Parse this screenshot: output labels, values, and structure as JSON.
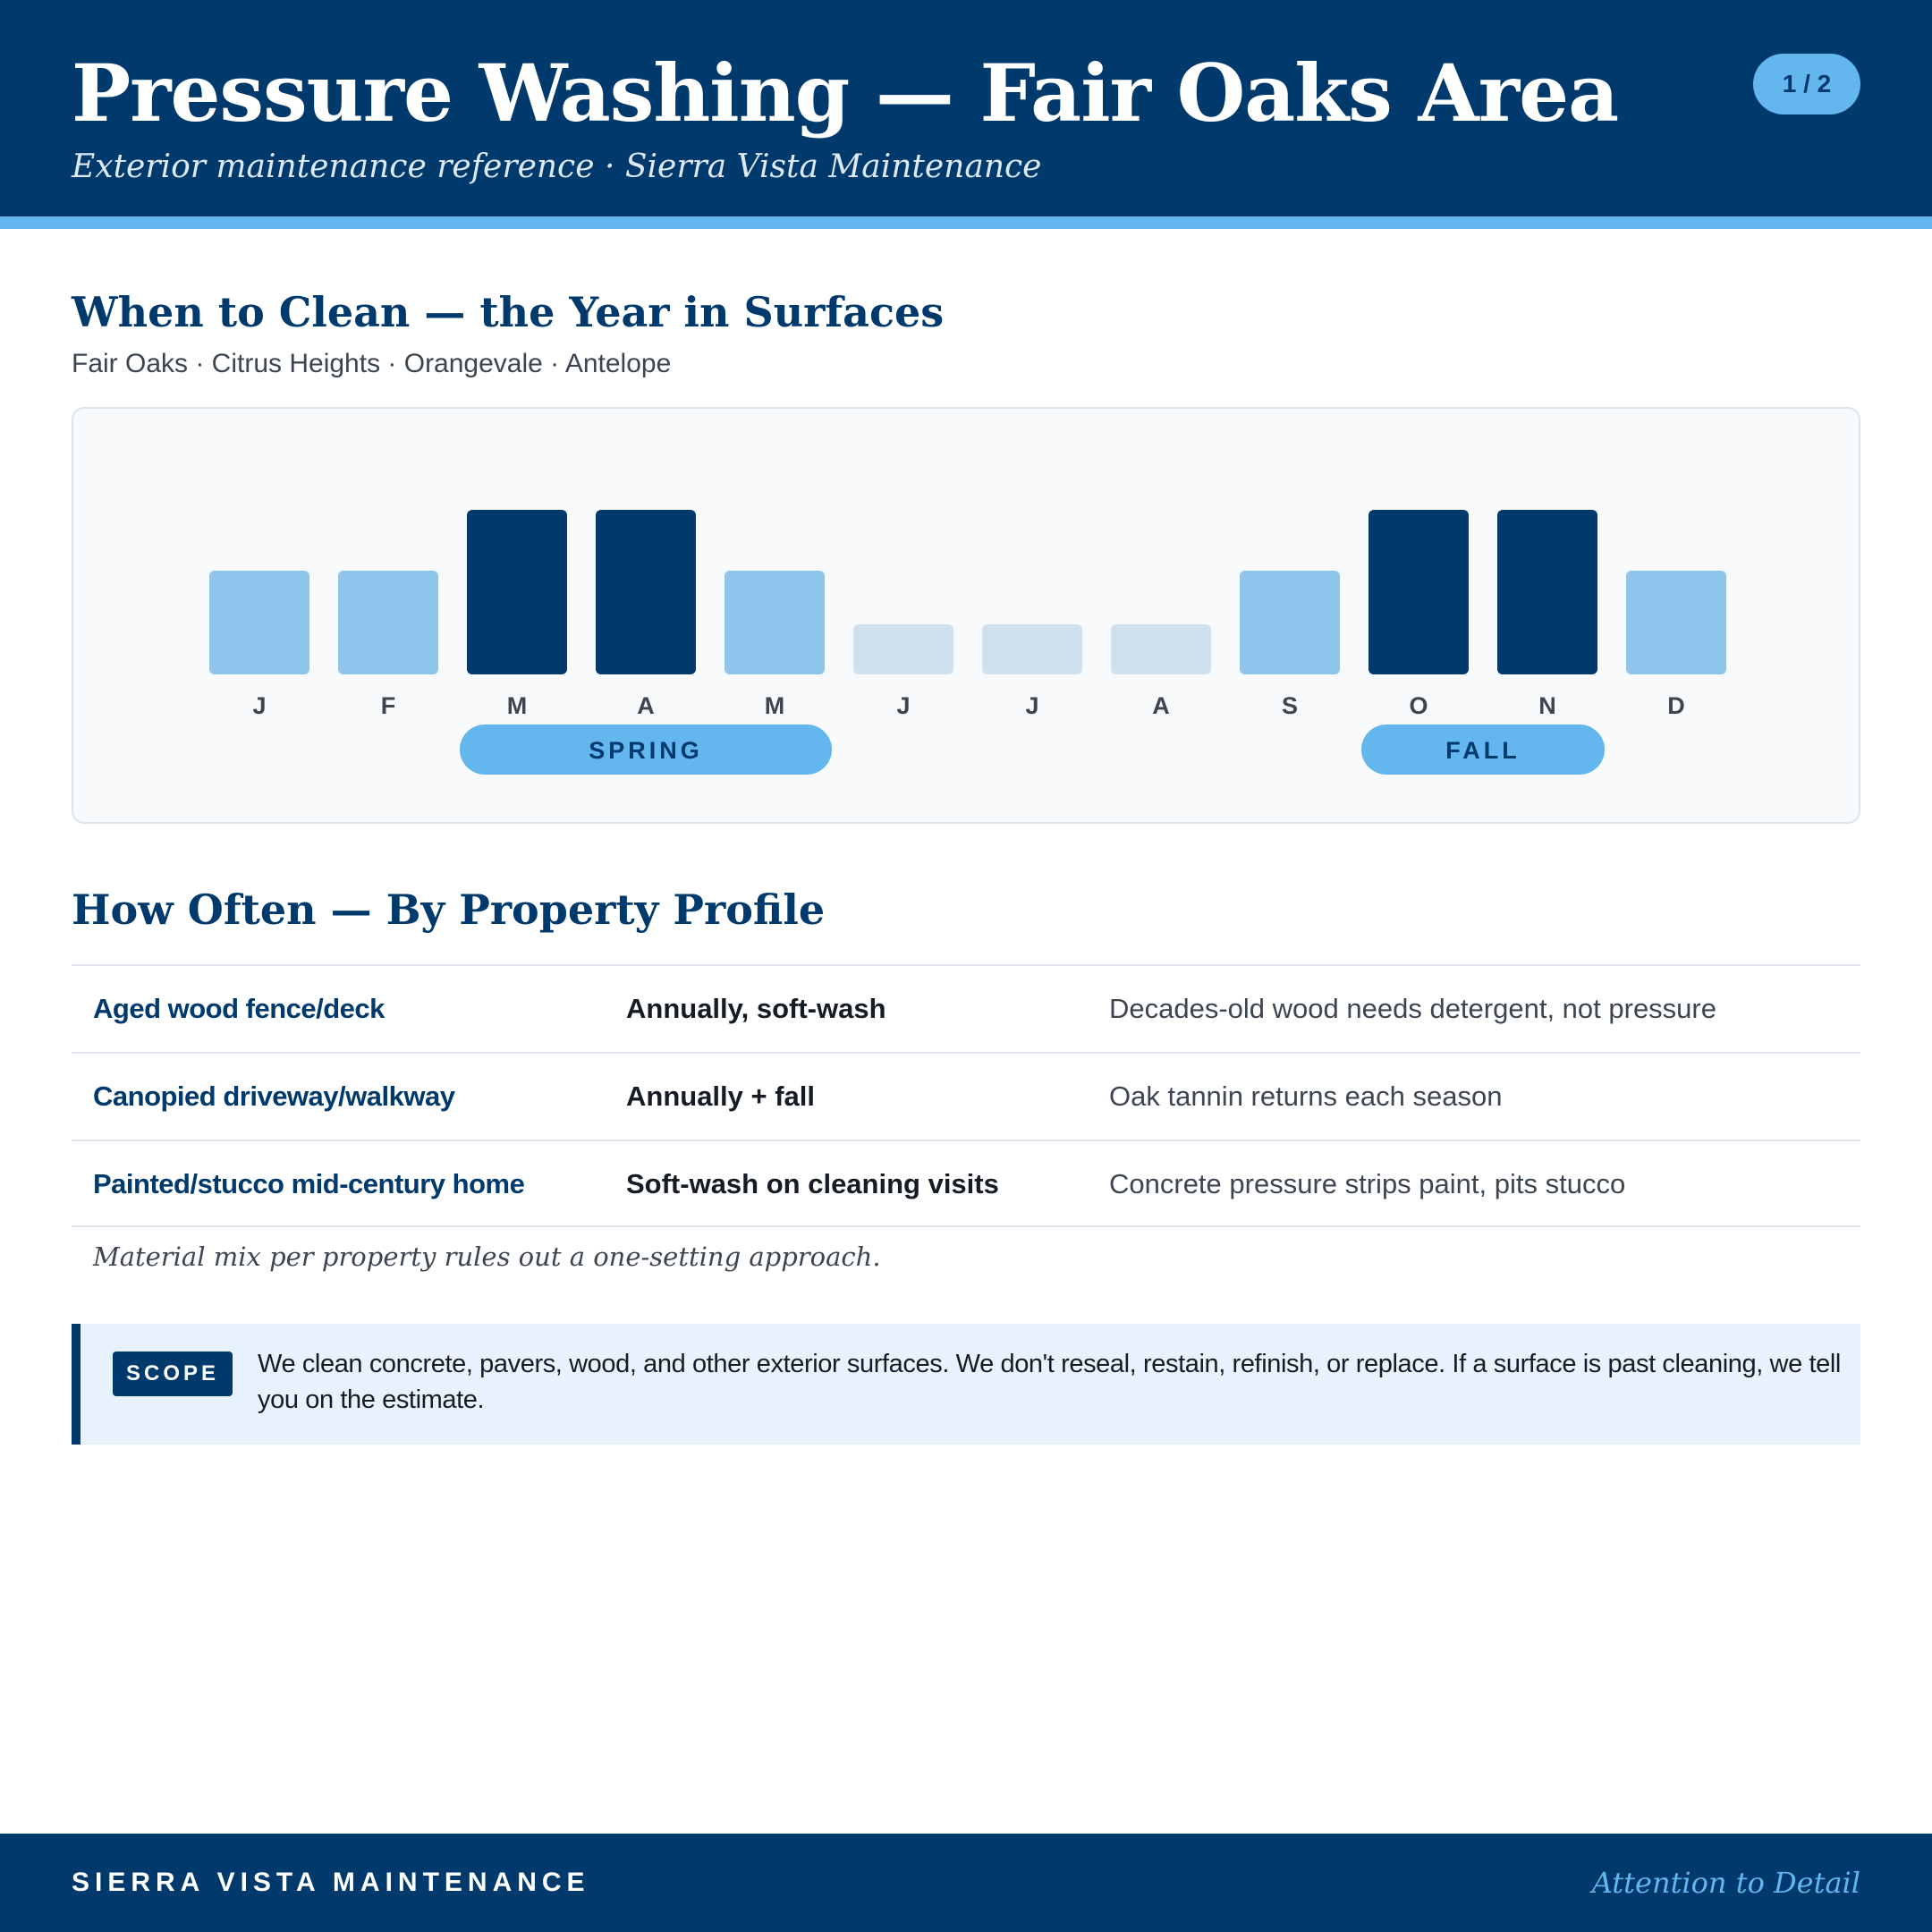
{
  "header": {
    "title": "Pressure Washing — Fair Oaks Area",
    "subtitle": "Exterior maintenance reference · Sierra Vista Maintenance",
    "page_indicator": "1 / 2"
  },
  "calendar_section": {
    "title": "When to Clean — the Year in Surfaces",
    "areas": "Fair Oaks · Citrus Heights · Orangevale · Antelope"
  },
  "chart_data": {
    "type": "bar",
    "categories": [
      "J",
      "F",
      "M",
      "A",
      "M",
      "J",
      "J",
      "A",
      "S",
      "O",
      "N",
      "D"
    ],
    "values": [
      2,
      2,
      3,
      3,
      2,
      1,
      1,
      1,
      2,
      3,
      3,
      2
    ],
    "season_bands": [
      {
        "label": "SPRING",
        "months": [
          3,
          5
        ]
      },
      {
        "label": "FALL",
        "months": [
          10,
          11
        ]
      }
    ],
    "colors": {
      "peak": "#003a6c",
      "mid": "#8fc5ec",
      "low": "#cfe0ee",
      "band": "#63b6ee",
      "band_text": "#003a6c",
      "tick": "#3d4650"
    }
  },
  "frequency_section": {
    "title": "How Often — By Property Profile",
    "rows": [
      {
        "profile": "Aged wood fence/deck",
        "frequency": "Annually, soft-wash",
        "note": "Decades-old wood needs detergent, not pressure"
      },
      {
        "profile": "Canopied driveway/walkway",
        "frequency": "Annually + fall",
        "note": "Oak tannin returns each season"
      },
      {
        "profile": "Painted/stucco mid-century home",
        "frequency": "Soft-wash on cleaning visits",
        "note": "Concrete pressure strips paint, pits stucco"
      }
    ],
    "footnote": "Material mix per property rules out a one-setting approach."
  },
  "scope": {
    "tag": "SCOPE",
    "text": "We clean concrete, pavers, wood, and other exterior surfaces. We don't reseal, restain, refinish, or replace. If a surface is past cleaning, we tell you on the estimate."
  },
  "footer": {
    "brand": "SIERRA VISTA MAINTENANCE",
    "tagline": "Attention to Detail"
  }
}
